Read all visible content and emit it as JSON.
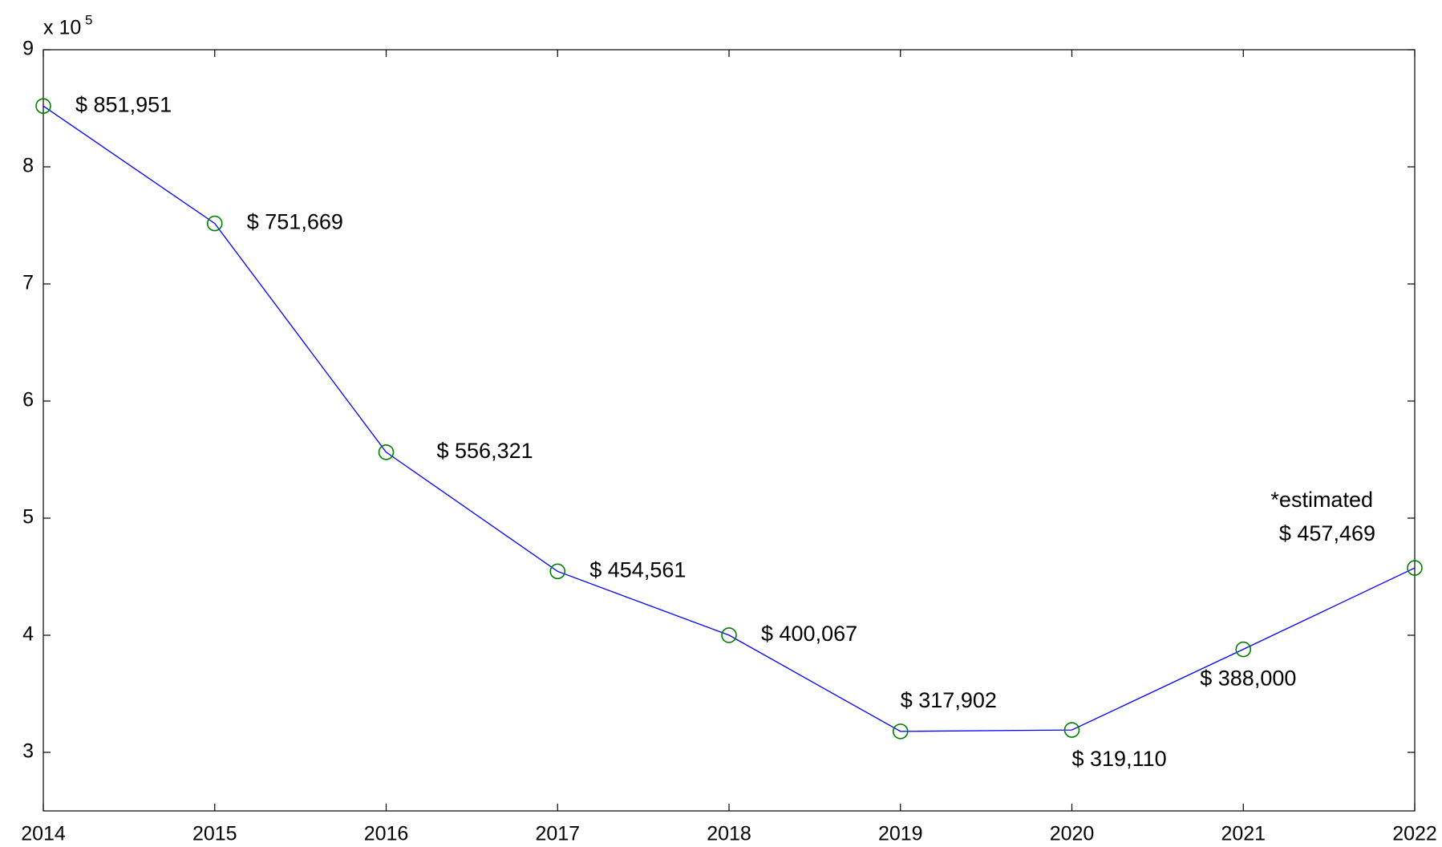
{
  "chart_data": {
    "type": "line",
    "x": [
      2014,
      2015,
      2016,
      2017,
      2018,
      2019,
      2020,
      2021,
      2022
    ],
    "values": [
      851951,
      751669,
      556321,
      454561,
      400067,
      317902,
      319110,
      388000,
      457469
    ],
    "value_labels": [
      "$ 851,951",
      "$ 751,669",
      "$ 556,321",
      "$ 454,561",
      "$ 400,067",
      "$ 317,902",
      "$ 319,110",
      "$ 388,000",
      "$ 457,469"
    ],
    "color": "#0000ff",
    "marker_color": "#008000",
    "xlim": [
      2014,
      2022
    ],
    "xticks": [
      2014,
      2015,
      2016,
      2017,
      2018,
      2019,
      2020,
      2021,
      2022
    ],
    "ylim": [
      250000,
      900000
    ],
    "yticks": [
      {
        "value": 300000,
        "label": "3"
      },
      {
        "value": 400000,
        "label": "4"
      },
      {
        "value": 500000,
        "label": "5"
      },
      {
        "value": 600000,
        "label": "6"
      },
      {
        "value": 700000,
        "label": "7"
      },
      {
        "value": 800000,
        "label": "8"
      },
      {
        "value": 900000,
        "label": "9"
      }
    ],
    "y_multiplier": "x 10",
    "y_multiplier_exponent": "5",
    "annotation": "*estimated",
    "grid": false
  }
}
